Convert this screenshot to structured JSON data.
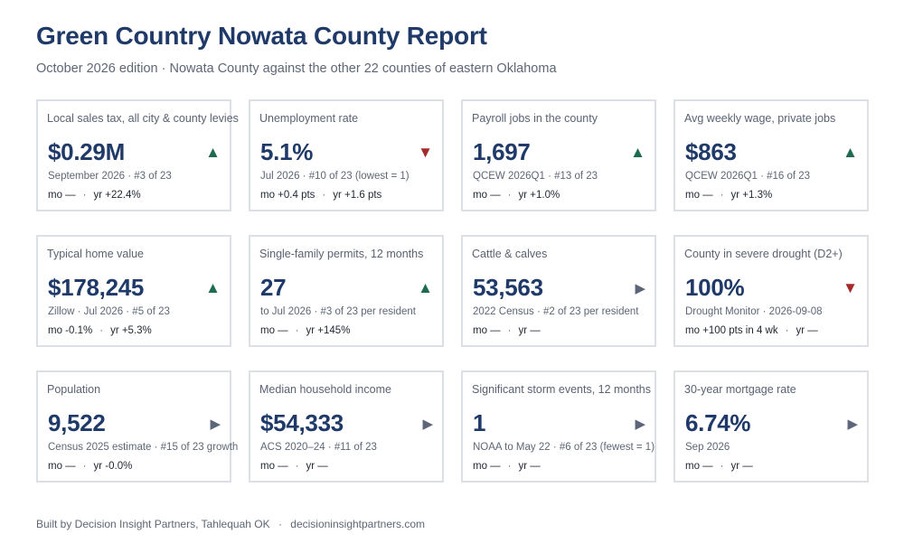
{
  "header": {
    "title": "Green Country Nowata County Report",
    "subtitle": "October 2026 edition · Nowata County against the other 22 counties of eastern Oklahoma"
  },
  "colors": {
    "title": "#1f3a68",
    "trend_up": "#1f6b52",
    "trend_down": "#a42a2a",
    "trend_flat": "#5c6678",
    "card_border": "#dcdfe4"
  },
  "cards": [
    {
      "label": "Local sales tax, all city & county levies",
      "value": "$0.29M",
      "trend": "up",
      "meta": "September 2026 · #3 of 23",
      "mo": "mo —",
      "yr": "yr +22.4%"
    },
    {
      "label": "Unemployment rate",
      "value": "5.1%",
      "trend": "down",
      "meta": "Jul 2026 · #10 of 23 (lowest = 1)",
      "mo": "mo +0.4 pts",
      "yr": "yr +1.6 pts"
    },
    {
      "label": "Payroll jobs in the county",
      "value": "1,697",
      "trend": "up",
      "meta": "QCEW 2026Q1 · #13 of 23",
      "mo": "mo —",
      "yr": "yr +1.0%"
    },
    {
      "label": "Avg weekly wage, private jobs",
      "value": "$863",
      "trend": "up",
      "meta": "QCEW 2026Q1 · #16 of 23",
      "mo": "mo —",
      "yr": "yr +1.3%"
    },
    {
      "label": "Typical home value",
      "value": "$178,245",
      "trend": "up",
      "meta": "Zillow · Jul 2026 · #5 of 23",
      "mo": "mo -0.1%",
      "yr": "yr +5.3%"
    },
    {
      "label": "Single-family permits, 12 months",
      "value": "27",
      "trend": "up",
      "meta": "to Jul 2026 · #3 of 23 per resident",
      "mo": "mo —",
      "yr": "yr +145%"
    },
    {
      "label": "Cattle & calves",
      "value": "53,563",
      "trend": "flat",
      "meta": "2022 Census · #2 of 23 per resident",
      "mo": "mo —",
      "yr": "yr —"
    },
    {
      "label": "County in severe drought (D2+)",
      "value": "100%",
      "trend": "down",
      "meta": "Drought Monitor · 2026-09-08",
      "mo": "mo +100 pts in 4 wk",
      "yr": "yr —"
    },
    {
      "label": "Population",
      "value": "9,522",
      "trend": "flat",
      "meta": "Census 2025 estimate · #15 of 23 growth",
      "mo": "mo —",
      "yr": "yr -0.0%"
    },
    {
      "label": "Median household income",
      "value": "$54,333",
      "trend": "flat",
      "meta": "ACS 2020–24 · #11 of 23",
      "mo": "mo —",
      "yr": "yr —"
    },
    {
      "label": "Significant storm events, 12 months",
      "value": "1",
      "trend": "flat",
      "meta": "NOAA to May 22 · #6 of 23 (fewest = 1)",
      "mo": "mo —",
      "yr": "yr —"
    },
    {
      "label": "30-year mortgage rate",
      "value": "6.74%",
      "trend": "flat",
      "meta": "Sep 2026",
      "mo": "mo —",
      "yr": "yr —"
    }
  ],
  "footer": {
    "credit": "Built by Decision Insight Partners, Tahlequah OK",
    "separator": "·",
    "website": "decisioninsightpartners.com"
  }
}
